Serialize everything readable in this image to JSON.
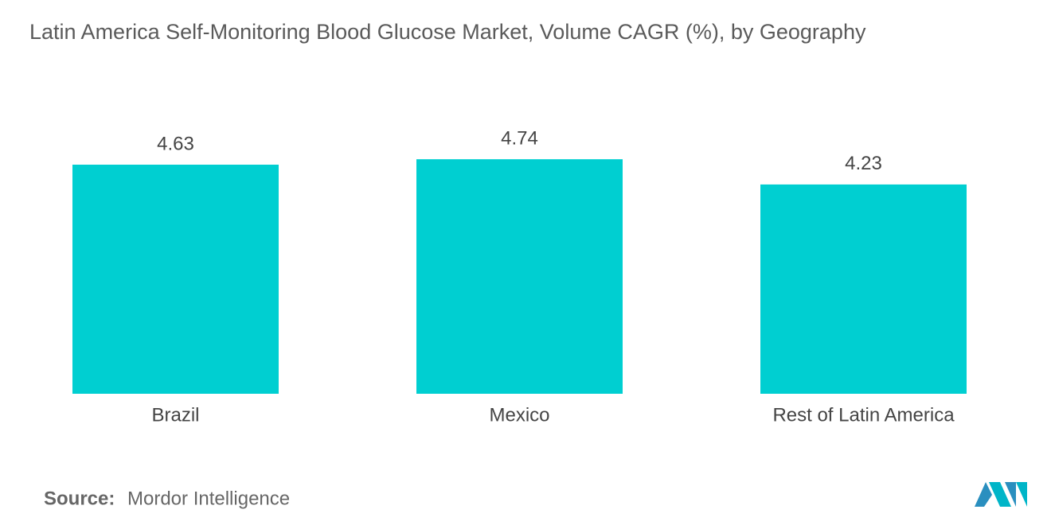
{
  "chart_data": {
    "type": "bar",
    "title": "Latin America Self-Monitoring Blood Glucose Market, Volume CAGR (%), by Geography",
    "categories": [
      "Brazil",
      "Mexico",
      "Rest of Latin America"
    ],
    "values": [
      4.63,
      4.74,
      4.23
    ],
    "color": "#00cfd1",
    "source_label": "Source:",
    "source": "Mordor Intelligence"
  }
}
